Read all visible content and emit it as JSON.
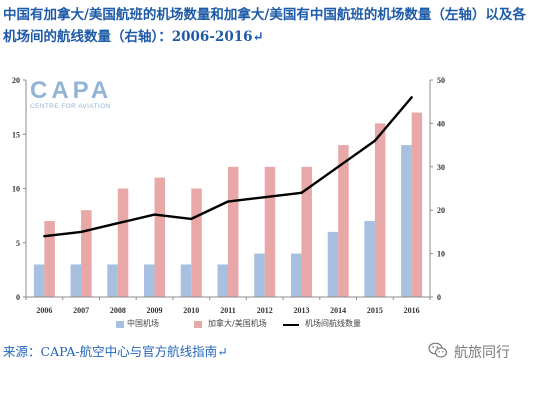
{
  "title": {
    "line1": "中国有加拿大/美国航班的机场数量和加拿大/美国有中国航班的机场数量（左轴）以及各",
    "line2": "机场间的航线数量（右轴）：2006-2016↵"
  },
  "logo": {
    "main": "CAPA",
    "sub": "CENTRE FOR AVIATION"
  },
  "chart_data": {
    "type": "bar",
    "categories": [
      "2006",
      "2007",
      "2008",
      "2009",
      "2010",
      "2011",
      "2012",
      "2013",
      "2014",
      "2015",
      "2016"
    ],
    "series": [
      {
        "name": "中国机场",
        "kind": "bar",
        "axis": "left",
        "color": "#a7c0e0",
        "values": [
          3,
          3,
          3,
          3,
          3,
          3,
          4,
          4,
          6,
          7,
          14
        ]
      },
      {
        "name": "加拿大/美国机场",
        "kind": "bar",
        "axis": "left",
        "color": "#e8a8a8",
        "values": [
          7,
          8,
          10,
          11,
          10,
          12,
          12,
          12,
          14,
          16,
          17
        ]
      },
      {
        "name": "机场间航线数量",
        "kind": "line",
        "axis": "right",
        "color": "#000000",
        "values": [
          14,
          15,
          17,
          19,
          18,
          22,
          23,
          24,
          30,
          36,
          46
        ]
      }
    ],
    "y_left": {
      "range": [
        0,
        20
      ],
      "ticks": [
        0,
        5,
        10,
        15,
        20
      ]
    },
    "y_right": {
      "range": [
        0,
        50
      ],
      "ticks": [
        0,
        10,
        20,
        30,
        40,
        50
      ]
    },
    "xlabel": "",
    "ylabel": "",
    "legend": "bottom",
    "grid": false
  },
  "source": "来源：CAPA-航空中心与官方航线指南↵",
  "watermark": {
    "icon": "wechat-icon",
    "text": "航旅同行"
  },
  "colors": {
    "title": "#1d5aa8",
    "source": "#2466b8",
    "logo": "#93b4d6",
    "axis": "#8c8c8c"
  }
}
